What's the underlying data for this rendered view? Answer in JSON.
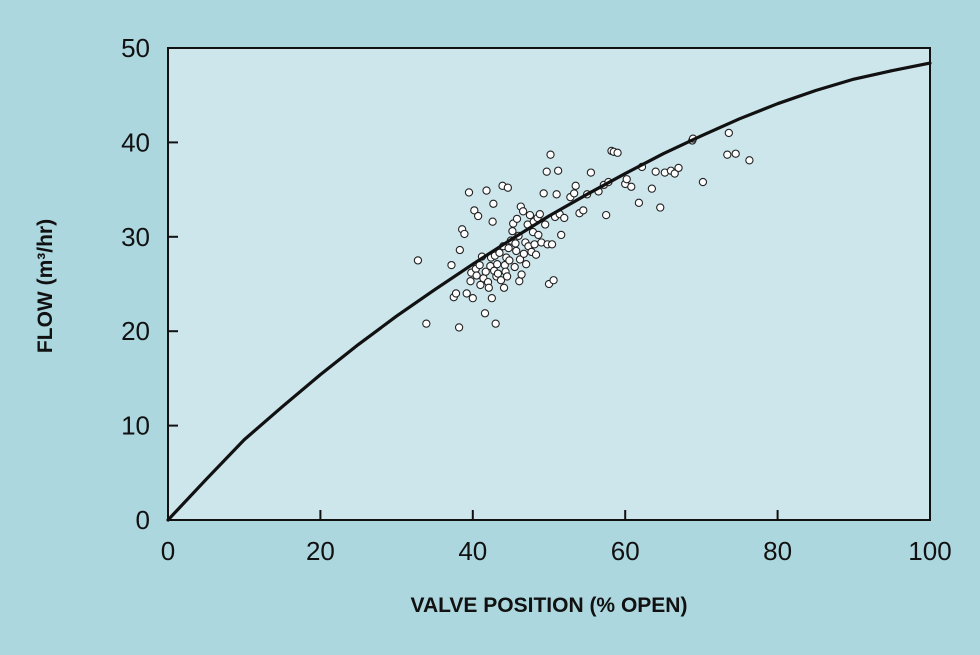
{
  "chart_data": {
    "type": "scatter",
    "xlabel": "VALVE POSITION (% OPEN)",
    "ylabel": "FLOW (m³/hr)",
    "xlim": [
      0,
      100
    ],
    "ylim": [
      0,
      50
    ],
    "x_ticks": [
      0,
      20,
      40,
      60,
      80,
      100
    ],
    "y_ticks": [
      0,
      10,
      20,
      30,
      40,
      50
    ],
    "grid": false,
    "colors": {
      "background": "#acd7df",
      "plot_area": "#cde6ec",
      "curve": "#111111",
      "points_fill": "#ffffff",
      "points_stroke": "#222222"
    },
    "curve": {
      "name": "",
      "x": [
        0,
        5,
        10,
        15,
        20,
        25,
        30,
        35,
        40,
        45,
        50,
        55,
        60,
        65,
        70,
        75,
        80,
        85,
        90,
        95,
        100
      ],
      "y": [
        0,
        4.3,
        8.5,
        12.0,
        15.4,
        18.6,
        21.6,
        24.4,
        27.1,
        29.7,
        32.2,
        34.5,
        36.7,
        38.8,
        40.7,
        42.5,
        44.1,
        45.5,
        46.7,
        47.6,
        48.4
      ]
    },
    "scatter": {
      "name": "",
      "points": [
        [
          32.8,
          27.5
        ],
        [
          33.9,
          20.8
        ],
        [
          37.2,
          27.0
        ],
        [
          37.5,
          23.6
        ],
        [
          37.8,
          24.0
        ],
        [
          38.2,
          20.4
        ],
        [
          38.3,
          28.6
        ],
        [
          38.6,
          30.8
        ],
        [
          38.9,
          30.3
        ],
        [
          39.2,
          24.0
        ],
        [
          39.5,
          34.7
        ],
        [
          39.7,
          25.3
        ],
        [
          39.8,
          26.2
        ],
        [
          40.0,
          23.5
        ],
        [
          40.2,
          32.8
        ],
        [
          40.4,
          26.6
        ],
        [
          40.5,
          25.9
        ],
        [
          40.7,
          32.2
        ],
        [
          40.9,
          27.0
        ],
        [
          41.0,
          24.9
        ],
        [
          41.2,
          27.9
        ],
        [
          41.4,
          25.6
        ],
        [
          41.6,
          21.9
        ],
        [
          41.7,
          26.3
        ],
        [
          41.8,
          34.9
        ],
        [
          42.0,
          25.2
        ],
        [
          42.1,
          24.6
        ],
        [
          42.3,
          26.9
        ],
        [
          42.4,
          27.8
        ],
        [
          42.5,
          23.5
        ],
        [
          42.6,
          31.6
        ],
        [
          42.7,
          33.5
        ],
        [
          42.8,
          26.4
        ],
        [
          42.9,
          28.0
        ],
        [
          43.0,
          20.8
        ],
        [
          43.1,
          25.8
        ],
        [
          43.2,
          27.1
        ],
        [
          43.3,
          26.1
        ],
        [
          43.5,
          28.3
        ],
        [
          43.7,
          25.4
        ],
        [
          43.9,
          35.4
        ],
        [
          44.0,
          29.0
        ],
        [
          44.1,
          24.6
        ],
        [
          44.2,
          27.0
        ],
        [
          44.3,
          26.3
        ],
        [
          44.4,
          27.8
        ],
        [
          44.5,
          25.8
        ],
        [
          44.6,
          35.2
        ],
        [
          44.7,
          28.8
        ],
        [
          44.8,
          27.5
        ],
        [
          45.0,
          29.6
        ],
        [
          45.2,
          30.6
        ],
        [
          45.3,
          31.4
        ],
        [
          45.5,
          26.8
        ],
        [
          45.6,
          29.3
        ],
        [
          45.7,
          28.5
        ],
        [
          45.8,
          31.9
        ],
        [
          46.0,
          30.1
        ],
        [
          46.1,
          25.3
        ],
        [
          46.2,
          27.6
        ],
        [
          46.3,
          33.2
        ],
        [
          46.4,
          26.0
        ],
        [
          46.6,
          32.7
        ],
        [
          46.7,
          28.2
        ],
        [
          46.9,
          29.4
        ],
        [
          47.0,
          27.1
        ],
        [
          47.2,
          31.3
        ],
        [
          47.3,
          29.0
        ],
        [
          47.5,
          32.3
        ],
        [
          47.7,
          28.4
        ],
        [
          47.9,
          30.5
        ],
        [
          48.0,
          31.6
        ],
        [
          48.1,
          29.2
        ],
        [
          48.3,
          28.1
        ],
        [
          48.5,
          32.0
        ],
        [
          48.6,
          30.2
        ],
        [
          48.8,
          32.4
        ],
        [
          49.0,
          29.4
        ],
        [
          49.3,
          34.6
        ],
        [
          49.5,
          31.3
        ],
        [
          49.7,
          36.9
        ],
        [
          49.8,
          29.2
        ],
        [
          50.0,
          25.0
        ],
        [
          50.2,
          38.7
        ],
        [
          50.4,
          29.2
        ],
        [
          50.6,
          25.4
        ],
        [
          50.8,
          32.1
        ],
        [
          51.0,
          34.5
        ],
        [
          51.2,
          37.0
        ],
        [
          51.4,
          32.4
        ],
        [
          51.6,
          30.2
        ],
        [
          52.0,
          32.0
        ],
        [
          52.8,
          34.2
        ],
        [
          53.3,
          34.6
        ],
        [
          53.5,
          35.4
        ],
        [
          54.0,
          32.5
        ],
        [
          54.5,
          32.8
        ],
        [
          55.0,
          34.5
        ],
        [
          55.5,
          36.8
        ],
        [
          56.5,
          34.8
        ],
        [
          57.2,
          35.5
        ],
        [
          57.5,
          32.3
        ],
        [
          57.8,
          35.8
        ],
        [
          58.2,
          39.1
        ],
        [
          58.5,
          39.0
        ],
        [
          59.0,
          38.9
        ],
        [
          60.0,
          35.6
        ],
        [
          60.2,
          36.1
        ],
        [
          60.8,
          35.3
        ],
        [
          61.8,
          33.6
        ],
        [
          62.2,
          37.4
        ],
        [
          63.5,
          35.1
        ],
        [
          64.0,
          36.9
        ],
        [
          64.6,
          33.1
        ],
        [
          65.2,
          36.8
        ],
        [
          66.0,
          37.0
        ],
        [
          66.5,
          36.7
        ],
        [
          67.0,
          37.3
        ],
        [
          68.8,
          40.2
        ],
        [
          68.9,
          40.4
        ],
        [
          70.2,
          35.8
        ],
        [
          73.4,
          38.7
        ],
        [
          73.6,
          41.0
        ],
        [
          74.5,
          38.8
        ],
        [
          76.3,
          38.1
        ]
      ]
    }
  }
}
